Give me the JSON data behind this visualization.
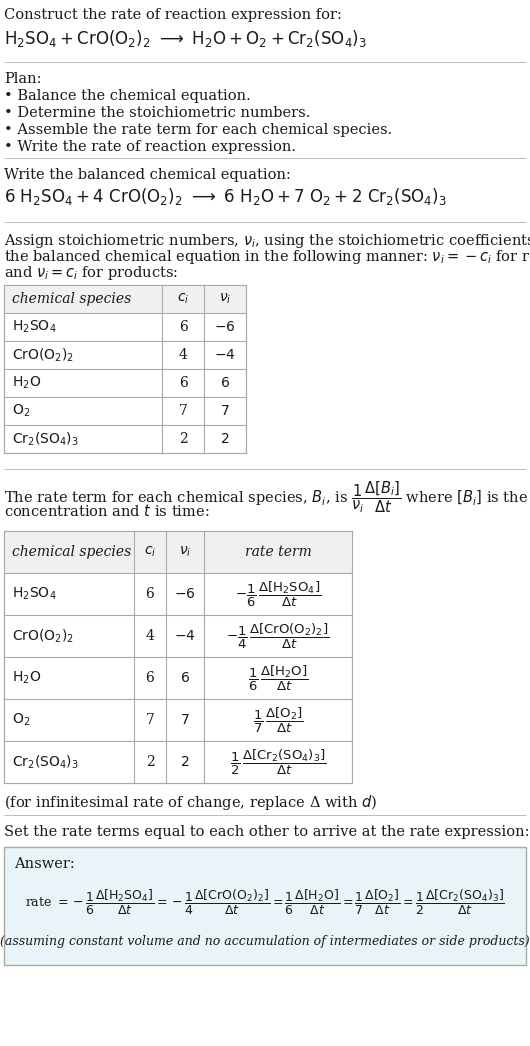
{
  "bg_color": "#ffffff",
  "text_color": "#1a1a1a",
  "table_header_bg": "#f0f0f0",
  "table_border_color": "#aaaaaa",
  "separator_color": "#bbbbbb",
  "answer_box_color": "#e8f4f8",
  "title_line1": "Construct the rate of reaction expression for:",
  "plan_header": "Plan:",
  "plan_items": [
    "• Balance the chemical equation.",
    "• Determine the stoichiometric numbers.",
    "• Assemble the rate term for each chemical species.",
    "• Write the rate of reaction expression."
  ],
  "balanced_header": "Write the balanced chemical equation:",
  "stoich_intro_lines": [
    "Assign stoichiometric numbers, $\\nu_i$, using the stoichiometric coefficients, $c_i$, from",
    "the balanced chemical equation in the following manner: $\\nu_i = -c_i$ for reactants",
    "and $\\nu_i = c_i$ for products:"
  ],
  "rate_intro_line1": "The rate term for each chemical species, $B_i$, is $\\dfrac{1}{\\nu_i}\\dfrac{\\Delta[B_i]}{\\Delta t}$ where $[B_i]$ is the amount",
  "rate_intro_line2": "concentration and $t$ is time:",
  "infinitesimal_note": "(for infinitesimal rate of change, replace Δ with $d$)",
  "set_equal_text": "Set the rate terms equal to each other to arrive at the rate expression:",
  "answer_label": "Answer:",
  "assuming_note": "(assuming constant volume and no accumulation of intermediates or side products)"
}
